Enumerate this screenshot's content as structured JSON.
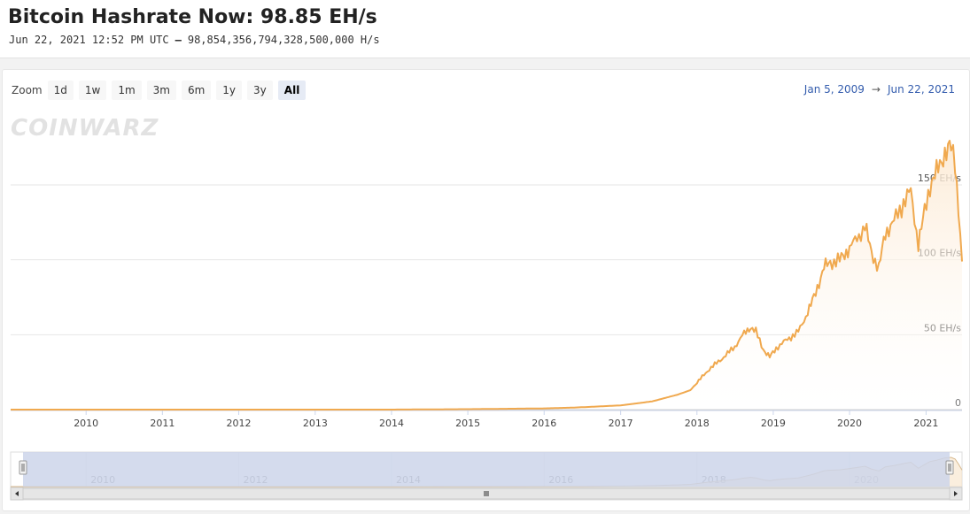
{
  "header": {
    "title": "Bitcoin Hashrate Now: 98.85 EH/s",
    "timestamp": "Jun 22, 2021 12:52 PM UTC",
    "separator": "–",
    "hashes": "98,854,356,794,328,500,000 H/s"
  },
  "zoom": {
    "label": "Zoom",
    "buttons": [
      "1d",
      "1w",
      "1m",
      "3m",
      "6m",
      "1y",
      "3y",
      "All"
    ],
    "active": "All"
  },
  "range": {
    "from": "Jan 5, 2009",
    "arrow": "→",
    "to": "Jun 22, 2021"
  },
  "watermark": "COINWARZ",
  "colors": {
    "line": "#f0a94f",
    "area_top": "#fce9d2",
    "navigator_mask": "#cdd5ea",
    "grid": "#e6e6e6",
    "range_text": "#335cad"
  },
  "chart_data": {
    "type": "area",
    "title": "",
    "xlabel": "",
    "ylabel": "",
    "x_ticks": [
      "2010",
      "2011",
      "2012",
      "2013",
      "2014",
      "2015",
      "2016",
      "2017",
      "2018",
      "2019",
      "2020",
      "2021"
    ],
    "y_ticks": [
      {
        "value": 0,
        "label": "0"
      },
      {
        "value": 50,
        "label": "50 EH/s"
      },
      {
        "value": 100,
        "label": "100 EH/s"
      },
      {
        "value": 150,
        "label": "150 EH/s"
      }
    ],
    "xlim": [
      "2009-01-05",
      "2021-06-22"
    ],
    "ylim": [
      0,
      180
    ],
    "grid": true,
    "legend": "none",
    "series": [
      {
        "unit": "EH/s",
        "points": [
          [
            "2009-01-05",
            0
          ],
          [
            "2013-01-01",
            2e-05
          ],
          [
            "2014-01-01",
            0.01
          ],
          [
            "2015-01-01",
            0.3
          ],
          [
            "2016-01-01",
            0.8
          ],
          [
            "2016-06-01",
            1.4
          ],
          [
            "2017-01-01",
            2.8
          ],
          [
            "2017-06-01",
            5.5
          ],
          [
            "2017-10-01",
            10
          ],
          [
            "2017-12-01",
            13
          ],
          [
            "2018-01-01",
            18
          ],
          [
            "2018-03-01",
            27
          ],
          [
            "2018-05-01",
            34
          ],
          [
            "2018-07-01",
            42
          ],
          [
            "2018-08-15",
            51
          ],
          [
            "2018-09-15",
            55
          ],
          [
            "2018-10-10",
            52
          ],
          [
            "2018-11-15",
            40
          ],
          [
            "2018-12-15",
            35
          ],
          [
            "2019-01-15",
            41
          ],
          [
            "2019-03-01",
            46
          ],
          [
            "2019-05-01",
            52
          ],
          [
            "2019-06-15",
            65
          ],
          [
            "2019-07-15",
            75
          ],
          [
            "2019-09-01",
            95
          ],
          [
            "2019-10-01",
            98
          ],
          [
            "2019-11-15",
            100
          ],
          [
            "2020-01-01",
            108
          ],
          [
            "2020-02-15",
            116
          ],
          [
            "2020-03-15",
            122
          ],
          [
            "2020-04-15",
            105
          ],
          [
            "2020-05-20",
            94
          ],
          [
            "2020-06-20",
            118
          ],
          [
            "2020-08-01",
            126
          ],
          [
            "2020-09-15",
            138
          ],
          [
            "2020-10-20",
            146
          ],
          [
            "2020-11-25",
            110
          ],
          [
            "2020-12-25",
            132
          ],
          [
            "2021-01-20",
            150
          ],
          [
            "2021-02-20",
            158
          ],
          [
            "2021-04-01",
            172
          ],
          [
            "2021-05-01",
            175
          ],
          [
            "2021-05-20",
            165
          ],
          [
            "2021-06-05",
            135
          ],
          [
            "2021-06-22",
            98.85
          ]
        ]
      }
    ]
  }
}
